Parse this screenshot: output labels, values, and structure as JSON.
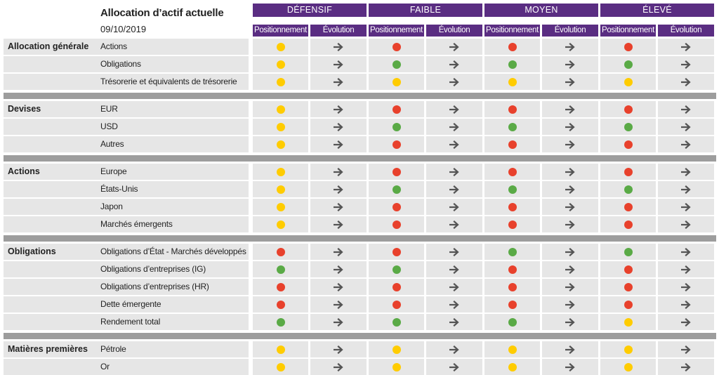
{
  "header": {
    "title": "Allocation d’actif actuelle",
    "date": "09/10/2019",
    "profiles": [
      "DÉFENSIF",
      "FAIBLE",
      "MOYEN",
      "ÉLEVÉ"
    ],
    "subcolumns": [
      "Positionnement",
      "Évolution"
    ]
  },
  "colors": {
    "purple": "#5a2d82",
    "yellow": "#ffcc00",
    "green": "#5aaa46",
    "red": "#e8412c",
    "row_bg": "#e6e6e6",
    "separator": "#9d9d9d",
    "arrow": "#555555"
  },
  "evolution_icon": "arrow-right-icon",
  "sections": [
    {
      "category": "Allocation générale",
      "rows": [
        {
          "asset": "Actions",
          "positions": [
            "yellow",
            "red",
            "red",
            "red"
          ]
        },
        {
          "asset": "Obligations",
          "positions": [
            "yellow",
            "green",
            "green",
            "green"
          ]
        },
        {
          "asset": "Trésorerie et équivalents de trésorerie",
          "positions": [
            "yellow",
            "yellow",
            "yellow",
            "yellow"
          ]
        }
      ]
    },
    {
      "category": "Devises",
      "rows": [
        {
          "asset": "EUR",
          "positions": [
            "yellow",
            "red",
            "red",
            "red"
          ]
        },
        {
          "asset": "USD",
          "positions": [
            "yellow",
            "green",
            "green",
            "green"
          ]
        },
        {
          "asset": "Autres",
          "positions": [
            "yellow",
            "red",
            "red",
            "red"
          ]
        }
      ]
    },
    {
      "category": "Actions",
      "rows": [
        {
          "asset": "Europe",
          "positions": [
            "yellow",
            "red",
            "red",
            "red"
          ]
        },
        {
          "asset": "États-Unis",
          "positions": [
            "yellow",
            "green",
            "green",
            "green"
          ]
        },
        {
          "asset": "Japon",
          "positions": [
            "yellow",
            "red",
            "red",
            "red"
          ]
        },
        {
          "asset": "Marchés émergents",
          "positions": [
            "yellow",
            "red",
            "red",
            "red"
          ]
        }
      ]
    },
    {
      "category": "Obligations",
      "rows": [
        {
          "asset": "Obligations d’État - Marchés développés",
          "positions": [
            "red",
            "red",
            "green",
            "green"
          ]
        },
        {
          "asset": "Obligations d’entreprises (IG)",
          "positions": [
            "green",
            "green",
            "red",
            "red"
          ]
        },
        {
          "asset": "Obligations d’entreprises (HR)",
          "positions": [
            "red",
            "red",
            "red",
            "red"
          ]
        },
        {
          "asset": "Dette émergente",
          "positions": [
            "red",
            "red",
            "red",
            "red"
          ]
        },
        {
          "asset": "Rendement total",
          "positions": [
            "green",
            "green",
            "green",
            "yellow"
          ]
        }
      ]
    },
    {
      "category": "Matières premières",
      "rows": [
        {
          "asset": "Pétrole",
          "positions": [
            "yellow",
            "yellow",
            "yellow",
            "yellow"
          ]
        },
        {
          "asset": "Or",
          "positions": [
            "yellow",
            "yellow",
            "yellow",
            "yellow"
          ]
        }
      ]
    }
  ]
}
